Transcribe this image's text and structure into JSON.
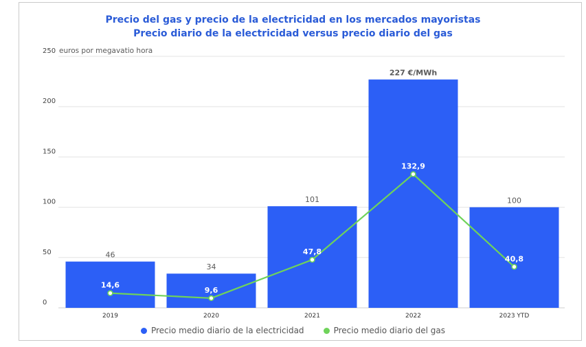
{
  "chart_data": {
    "type": "bar",
    "title": "Precio del gas y precio de la electricidad en los mercados mayoristas",
    "subtitle": "Precio diario de la electricidad versus precio diario del gas",
    "ylabel": "euros por megavatio hora",
    "ylim": [
      0,
      250
    ],
    "yticks": [
      0,
      50,
      100,
      150,
      200,
      250
    ],
    "grid": true,
    "legend_position": "bottom",
    "categories": [
      "2019",
      "2020",
      "2021",
      "2022",
      "2023 YTD"
    ],
    "series": [
      {
        "name": "Precio medio diario de la electricidad",
        "type": "bar",
        "color": "#2c5ff6",
        "values": [
          46,
          34,
          101,
          227,
          100
        ],
        "labels": [
          "46",
          "34",
          "101",
          "227 €/MWh",
          "100"
        ]
      },
      {
        "name": "Precio medio diario del gas",
        "type": "line",
        "color": "#6fd35a",
        "values": [
          14.6,
          9.6,
          47.8,
          132.9,
          40.8
        ],
        "labels": [
          "14,6",
          "9,6",
          "47,8",
          "132,9",
          "40,8"
        ]
      }
    ]
  }
}
